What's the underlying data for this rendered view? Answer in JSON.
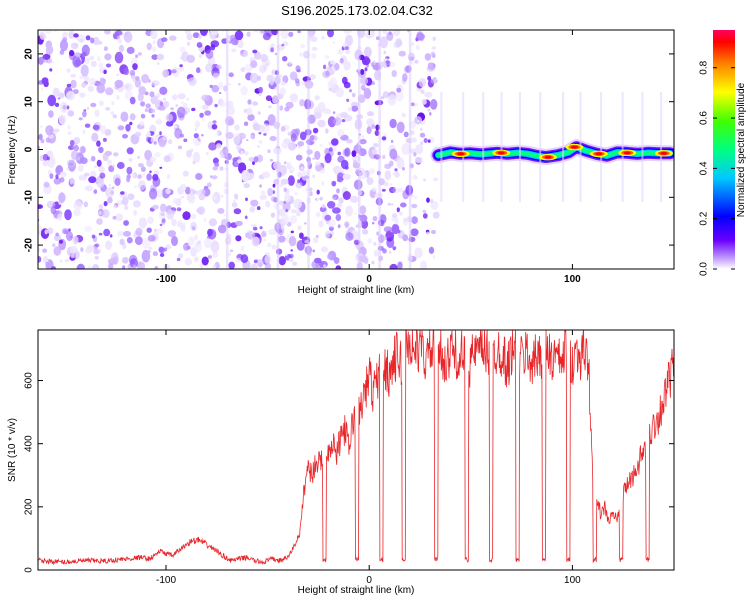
{
  "title": "S196.2025.173.02.04.C32",
  "chart_data": [
    {
      "type": "heatmap",
      "xlabel": "Height of straight line (km)",
      "ylabel": "Frequency (Hz)",
      "xlim": [
        -163,
        150
      ],
      "ylim": [
        -25,
        25
      ],
      "x_ticks": [
        -100,
        0,
        100
      ],
      "y_ticks": [
        -20,
        -10,
        0,
        10,
        20
      ],
      "noise_region_x": [
        -163,
        33
      ],
      "signal_region_x": [
        33,
        150
      ],
      "signal_track": {
        "x": [
          34,
          40,
          45,
          50,
          55,
          60,
          63,
          68,
          73,
          78,
          82,
          87,
          93,
          98,
          102,
          107,
          112,
          117,
          122,
          127,
          132,
          137,
          142,
          148
        ],
        "freq_hz": [
          -1.2,
          -0.6,
          -0.9,
          -0.8,
          -1.0,
          -0.8,
          -0.7,
          -0.9,
          -0.7,
          -0.9,
          -1.3,
          -1.6,
          -1.2,
          -0.6,
          0.5,
          -0.3,
          -0.9,
          -1.3,
          -0.6,
          -0.7,
          -0.9,
          -0.7,
          -0.8,
          -0.8
        ]
      },
      "hot_spots_x": [
        45,
        65,
        88,
        101,
        113,
        127,
        145
      ],
      "colorbar": {
        "label": "Normalized spectral amplitude",
        "ticks": [
          0.0,
          0.2,
          0.4,
          0.6,
          0.8
        ],
        "range": [
          0,
          0.95
        ],
        "colors": [
          "#ffffff",
          "#6a00ff",
          "#0000ff",
          "#00ffff",
          "#00ff00",
          "#ffff00",
          "#ff8000",
          "#ff0000",
          "#ff0060"
        ]
      }
    },
    {
      "type": "line",
      "xlabel": "Height of straight line (km)",
      "ylabel": "SNR (10 * v/v)",
      "xlim": [
        -163,
        150
      ],
      "ylim": [
        0,
        760
      ],
      "x_ticks": [
        -100,
        0,
        100
      ],
      "y_ticks": [
        0,
        200,
        400,
        600
      ],
      "series": [
        {
          "color": "#e8262a",
          "x": [
            -163,
            -150,
            -140,
            -130,
            -120,
            -112,
            -108,
            -103,
            -97,
            -92,
            -88,
            -84,
            -80,
            -76,
            -72,
            -68,
            -64,
            -60,
            -56,
            -52,
            -48,
            -44,
            -40,
            -37,
            -34,
            -32,
            -30,
            -28,
            -26,
            -24,
            -22,
            -20,
            -18,
            -16,
            -14,
            -12,
            -10,
            -8,
            -6,
            -4,
            -2,
            0,
            2,
            4,
            6,
            8,
            10,
            12,
            14,
            16,
            18,
            20,
            22,
            24,
            26,
            28,
            30,
            32,
            34,
            36,
            38,
            40,
            42,
            44,
            46,
            48,
            50,
            52,
            54,
            56,
            58,
            60,
            62,
            64,
            66,
            68,
            70,
            72,
            74,
            76,
            78,
            80,
            82,
            84,
            86,
            88,
            90,
            92,
            94,
            96,
            98,
            100,
            102,
            104,
            106,
            108,
            110,
            112,
            114,
            116,
            118,
            120,
            122,
            124,
            126,
            128,
            130,
            132,
            134,
            136,
            138,
            140,
            142,
            144,
            146,
            148,
            150
          ],
          "y": [
            30,
            25,
            30,
            28,
            35,
            40,
            35,
            60,
            45,
            70,
            90,
            95,
            80,
            65,
            45,
            30,
            35,
            40,
            28,
            25,
            35,
            30,
            40,
            75,
            120,
            260,
            330,
            300,
            350,
            330,
            400,
            380,
            410,
            360,
            420,
            450,
            380,
            480,
            470,
            520,
            560,
            620,
            560,
            600,
            650,
            640,
            620,
            660,
            680,
            650,
            700,
            720,
            690,
            710,
            700,
            660,
            700,
            690,
            720,
            690,
            640,
            690,
            700,
            670,
            680,
            640,
            660,
            690,
            680,
            700,
            690,
            660,
            690,
            700,
            680,
            640,
            690,
            700,
            660,
            680,
            690,
            650,
            670,
            690,
            680,
            700,
            660,
            680,
            650,
            690,
            700,
            660,
            690,
            680,
            700,
            650,
            280,
            240,
            170,
            200,
            150,
            180,
            160,
            210,
            260,
            280,
            300,
            330,
            360,
            390,
            430,
            460,
            480,
            520,
            560,
            610,
            650
          ]
        }
      ],
      "dropouts_x": [
        -22,
        -6,
        6,
        17,
        33,
        48,
        60,
        73,
        86,
        98,
        111,
        124,
        137
      ]
    }
  ],
  "colorbar_ticks_text": [
    "0.0",
    "0.2",
    "0.4",
    "0.6",
    "0.8"
  ]
}
